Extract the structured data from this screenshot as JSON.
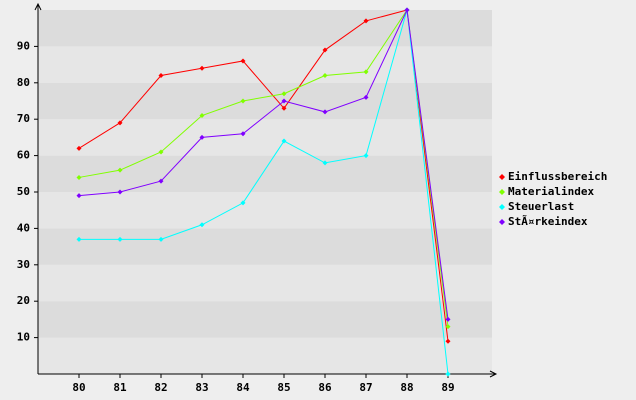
{
  "chart_data": {
    "type": "line",
    "categories": [
      "80",
      "81",
      "82",
      "83",
      "84",
      "85",
      "86",
      "87",
      "88",
      "89"
    ],
    "series": [
      {
        "name": "Einflussbereich",
        "color": "#ff0000",
        "values": [
          62,
          69,
          82,
          84,
          86,
          73,
          89,
          97,
          100,
          9
        ]
      },
      {
        "name": "Materialindex",
        "color": "#80ff00",
        "values": [
          54,
          56,
          61,
          71,
          75,
          77,
          82,
          83,
          100,
          13
        ]
      },
      {
        "name": "Steuerlast",
        "color": "#00ffff",
        "values": [
          37,
          37,
          37,
          41,
          47,
          64,
          58,
          60,
          100,
          0
        ]
      },
      {
        "name": "StÃ¤rkeindex",
        "color": "#8000ff",
        "values": [
          49,
          50,
          53,
          65,
          66,
          75,
          72,
          76,
          100,
          15
        ]
      }
    ],
    "ylim": [
      0,
      100
    ],
    "yticks": [
      10,
      20,
      30,
      40,
      50,
      60,
      70,
      80,
      90
    ],
    "grid": true,
    "legend": "right"
  }
}
